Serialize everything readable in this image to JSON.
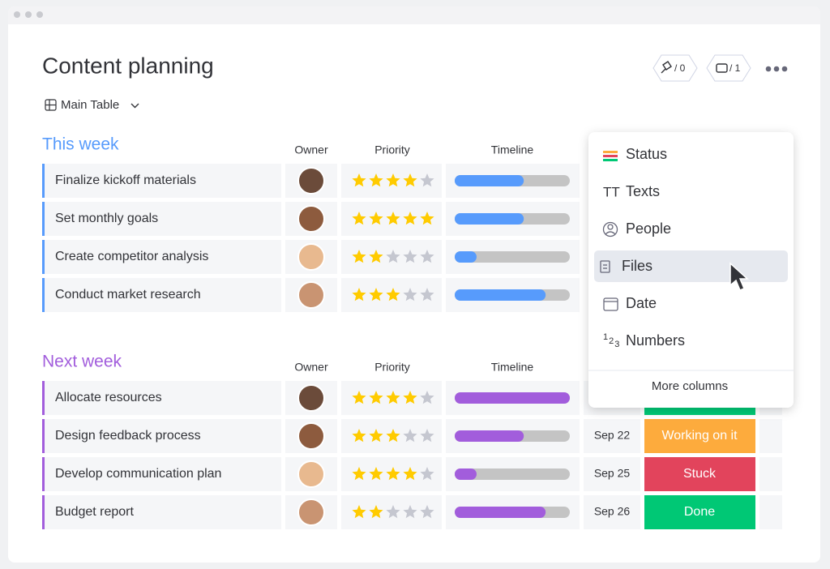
{
  "header": {
    "title": "Content planning",
    "badges": [
      "/ 0",
      "/ 1"
    ],
    "view": "Main Table"
  },
  "groups": [
    {
      "title": "This week",
      "color": "#579bfc",
      "columns": [
        "Owner",
        "Priority",
        "Timeline"
      ],
      "rows": [
        {
          "task": "Finalize kickoff materials",
          "rating": 4,
          "progress": 0.6
        },
        {
          "task": "Set monthly goals",
          "rating": 5,
          "progress": 0.6
        },
        {
          "task": "Create competitor analysis",
          "rating": 2,
          "progress": 0.19
        },
        {
          "task": "Conduct market research",
          "rating": 3,
          "progress": 0.79
        }
      ]
    },
    {
      "title": "Next week",
      "color": "#a25ddc",
      "columns": [
        "Owner",
        "Priority",
        "Timeline"
      ],
      "rows": [
        {
          "task": "Allocate resources",
          "rating": 4,
          "progress": 1.0,
          "status": {
            "color": "#00c875"
          }
        },
        {
          "task": "Design feedback process",
          "rating": 3,
          "progress": 0.6,
          "date": "Sep 22",
          "status": {
            "label": "Working on it",
            "color": "#fdab3d"
          }
        },
        {
          "task": "Develop communication plan",
          "rating": 4,
          "progress": 0.19,
          "date": "Sep 25",
          "status": {
            "label": "Stuck",
            "color": "#e2445c"
          }
        },
        {
          "task": "Budget report",
          "rating": 2,
          "progress": 0.79,
          "date": "Sep 26",
          "status": {
            "label": "Done",
            "color": "#00c875"
          }
        }
      ]
    }
  ],
  "menu": {
    "items": [
      "Status",
      "Texts",
      "People",
      "Files",
      "Date",
      "Numbers"
    ],
    "more": "More columns"
  }
}
